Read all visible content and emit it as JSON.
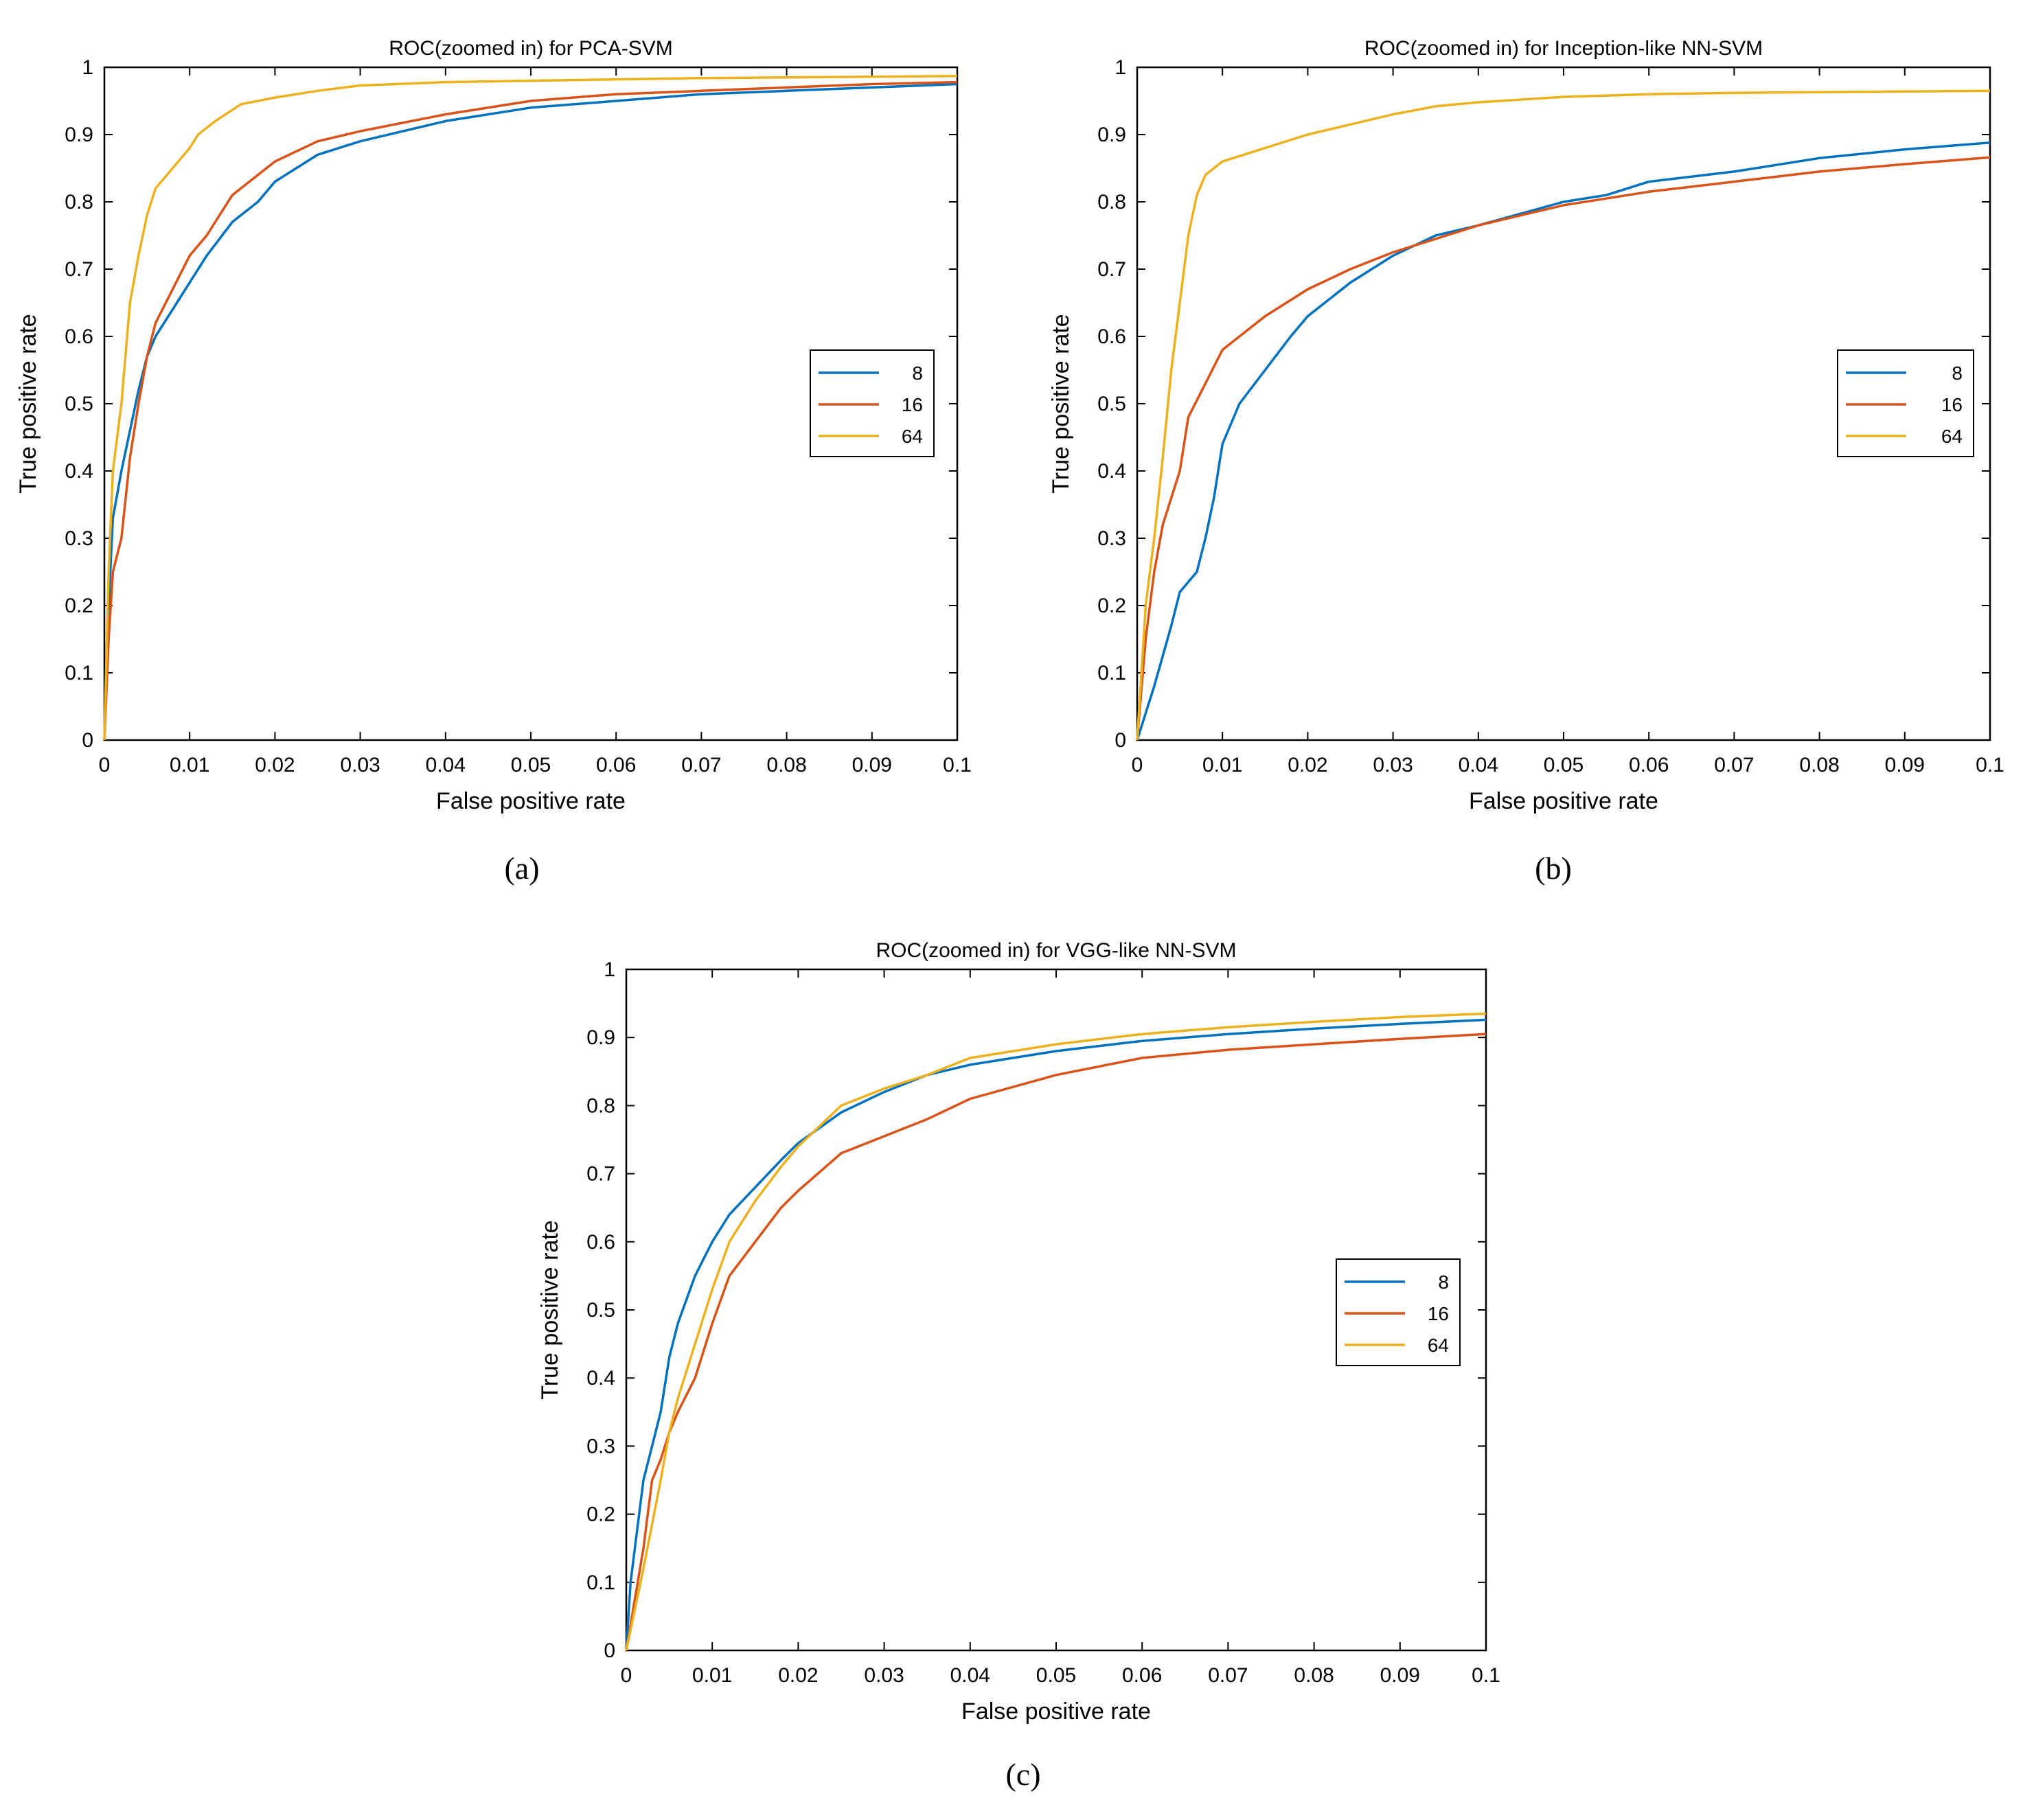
{
  "chart_data": [
    {
      "type": "line",
      "caption": "(a)",
      "title": "ROC(zoomed in) for PCA-SVM",
      "xlabel": "False positive rate",
      "ylabel": "True positive rate",
      "xlim": [
        0,
        0.1
      ],
      "ylim": [
        0,
        1
      ],
      "xticks": [
        "0",
        "0.01",
        "0.02",
        "0.03",
        "0.04",
        "0.05",
        "0.06",
        "0.07",
        "0.08",
        "0.09",
        "0.1"
      ],
      "yticks": [
        "0",
        "0.1",
        "0.2",
        "0.3",
        "0.4",
        "0.5",
        "0.6",
        "0.7",
        "0.8",
        "0.9",
        "1"
      ],
      "legend_position": "right-middle",
      "series": [
        {
          "name": "8",
          "color": "#0072BD",
          "points": [
            [
              0,
              0
            ],
            [
              0.0005,
              0.2
            ],
            [
              0.001,
              0.33
            ],
            [
              0.002,
              0.4
            ],
            [
              0.003,
              0.46
            ],
            [
              0.004,
              0.52
            ],
            [
              0.005,
              0.57
            ],
            [
              0.006,
              0.6
            ],
            [
              0.008,
              0.64
            ],
            [
              0.01,
              0.68
            ],
            [
              0.012,
              0.72
            ],
            [
              0.015,
              0.77
            ],
            [
              0.018,
              0.8
            ],
            [
              0.02,
              0.83
            ],
            [
              0.025,
              0.87
            ],
            [
              0.03,
              0.89
            ],
            [
              0.04,
              0.92
            ],
            [
              0.05,
              0.94
            ],
            [
              0.06,
              0.95
            ],
            [
              0.07,
              0.96
            ],
            [
              0.08,
              0.965
            ],
            [
              0.09,
              0.97
            ],
            [
              0.1,
              0.975
            ]
          ]
        },
        {
          "name": "16",
          "color": "#D95319",
          "points": [
            [
              0,
              0
            ],
            [
              0.0005,
              0.15
            ],
            [
              0.001,
              0.25
            ],
            [
              0.002,
              0.3
            ],
            [
              0.003,
              0.42
            ],
            [
              0.004,
              0.5
            ],
            [
              0.005,
              0.57
            ],
            [
              0.006,
              0.62
            ],
            [
              0.008,
              0.67
            ],
            [
              0.01,
              0.72
            ],
            [
              0.012,
              0.75
            ],
            [
              0.015,
              0.81
            ],
            [
              0.018,
              0.84
            ],
            [
              0.02,
              0.86
            ],
            [
              0.025,
              0.89
            ],
            [
              0.03,
              0.905
            ],
            [
              0.04,
              0.93
            ],
            [
              0.05,
              0.95
            ],
            [
              0.06,
              0.96
            ],
            [
              0.07,
              0.965
            ],
            [
              0.08,
              0.97
            ],
            [
              0.09,
              0.975
            ],
            [
              0.1,
              0.978
            ]
          ]
        },
        {
          "name": "64",
          "color": "#EDB120",
          "points": [
            [
              0,
              0
            ],
            [
              0.0005,
              0.25
            ],
            [
              0.001,
              0.4
            ],
            [
              0.002,
              0.5
            ],
            [
              0.003,
              0.65
            ],
            [
              0.004,
              0.72
            ],
            [
              0.005,
              0.78
            ],
            [
              0.006,
              0.82
            ],
            [
              0.008,
              0.85
            ],
            [
              0.01,
              0.88
            ],
            [
              0.011,
              0.9
            ],
            [
              0.013,
              0.92
            ],
            [
              0.016,
              0.945
            ],
            [
              0.02,
              0.955
            ],
            [
              0.025,
              0.965
            ],
            [
              0.03,
              0.973
            ],
            [
              0.04,
              0.978
            ],
            [
              0.05,
              0.98
            ],
            [
              0.06,
              0.982
            ],
            [
              0.07,
              0.984
            ],
            [
              0.08,
              0.985
            ],
            [
              0.09,
              0.986
            ],
            [
              0.1,
              0.987
            ]
          ]
        }
      ]
    },
    {
      "type": "line",
      "caption": "(b)",
      "title": "ROC(zoomed in) for Inception-like NN-SVM",
      "xlabel": "False positive rate",
      "ylabel": "True positive rate",
      "xlim": [
        0,
        0.1
      ],
      "ylim": [
        0,
        1
      ],
      "xticks": [
        "0",
        "0.01",
        "0.02",
        "0.03",
        "0.04",
        "0.05",
        "0.06",
        "0.07",
        "0.08",
        "0.09",
        "0.1"
      ],
      "yticks": [
        "0",
        "0.1",
        "0.2",
        "0.3",
        "0.4",
        "0.5",
        "0.6",
        "0.7",
        "0.8",
        "0.9",
        "1"
      ],
      "legend_position": "right-middle",
      "series": [
        {
          "name": "8",
          "color": "#0072BD",
          "points": [
            [
              0,
              0
            ],
            [
              0.002,
              0.08
            ],
            [
              0.004,
              0.17
            ],
            [
              0.005,
              0.22
            ],
            [
              0.007,
              0.25
            ],
            [
              0.008,
              0.3
            ],
            [
              0.009,
              0.36
            ],
            [
              0.01,
              0.44
            ],
            [
              0.012,
              0.5
            ],
            [
              0.015,
              0.55
            ],
            [
              0.018,
              0.6
            ],
            [
              0.02,
              0.63
            ],
            [
              0.025,
              0.68
            ],
            [
              0.03,
              0.72
            ],
            [
              0.035,
              0.75
            ],
            [
              0.04,
              0.765
            ],
            [
              0.05,
              0.8
            ],
            [
              0.055,
              0.81
            ],
            [
              0.06,
              0.83
            ],
            [
              0.07,
              0.845
            ],
            [
              0.08,
              0.865
            ],
            [
              0.09,
              0.878
            ],
            [
              0.1,
              0.888
            ]
          ]
        },
        {
          "name": "16",
          "color": "#D95319",
          "points": [
            [
              0,
              0
            ],
            [
              0.001,
              0.15
            ],
            [
              0.002,
              0.25
            ],
            [
              0.003,
              0.32
            ],
            [
              0.005,
              0.4
            ],
            [
              0.006,
              0.48
            ],
            [
              0.008,
              0.53
            ],
            [
              0.01,
              0.58
            ],
            [
              0.012,
              0.6
            ],
            [
              0.015,
              0.63
            ],
            [
              0.02,
              0.67
            ],
            [
              0.025,
              0.7
            ],
            [
              0.03,
              0.725
            ],
            [
              0.035,
              0.745
            ],
            [
              0.04,
              0.765
            ],
            [
              0.05,
              0.795
            ],
            [
              0.06,
              0.815
            ],
            [
              0.07,
              0.83
            ],
            [
              0.08,
              0.845
            ],
            [
              0.09,
              0.856
            ],
            [
              0.1,
              0.866
            ]
          ]
        },
        {
          "name": "64",
          "color": "#EDB120",
          "points": [
            [
              0,
              0
            ],
            [
              0.001,
              0.2
            ],
            [
              0.002,
              0.3
            ],
            [
              0.003,
              0.42
            ],
            [
              0.004,
              0.55
            ],
            [
              0.005,
              0.65
            ],
            [
              0.006,
              0.75
            ],
            [
              0.007,
              0.81
            ],
            [
              0.008,
              0.84
            ],
            [
              0.01,
              0.86
            ],
            [
              0.015,
              0.88
            ],
            [
              0.02,
              0.9
            ],
            [
              0.025,
              0.915
            ],
            [
              0.03,
              0.93
            ],
            [
              0.035,
              0.942
            ],
            [
              0.04,
              0.948
            ],
            [
              0.05,
              0.956
            ],
            [
              0.06,
              0.96
            ],
            [
              0.07,
              0.962
            ],
            [
              0.08,
              0.963
            ],
            [
              0.09,
              0.964
            ],
            [
              0.1,
              0.965
            ]
          ]
        }
      ]
    },
    {
      "type": "line",
      "caption": "(c)",
      "title": "ROC(zoomed in) for VGG-like NN-SVM",
      "xlabel": "False positive rate",
      "ylabel": "True positive rate",
      "xlim": [
        0,
        0.1
      ],
      "ylim": [
        0,
        1
      ],
      "xticks": [
        "0",
        "0.01",
        "0.02",
        "0.03",
        "0.04",
        "0.05",
        "0.06",
        "0.07",
        "0.08",
        "0.09",
        "0.1"
      ],
      "yticks": [
        "0",
        "0.1",
        "0.2",
        "0.3",
        "0.4",
        "0.5",
        "0.6",
        "0.7",
        "0.8",
        "0.9",
        "1"
      ],
      "legend_position": "right-middle",
      "series": [
        {
          "name": "8",
          "color": "#0072BD",
          "points": [
            [
              0,
              0
            ],
            [
              0.0005,
              0.1
            ],
            [
              0.001,
              0.15
            ],
            [
              0.002,
              0.25
            ],
            [
              0.003,
              0.3
            ],
            [
              0.004,
              0.35
            ],
            [
              0.005,
              0.43
            ],
            [
              0.006,
              0.48
            ],
            [
              0.008,
              0.55
            ],
            [
              0.01,
              0.6
            ],
            [
              0.012,
              0.64
            ],
            [
              0.015,
              0.68
            ],
            [
              0.018,
              0.72
            ],
            [
              0.02,
              0.745
            ],
            [
              0.025,
              0.79
            ],
            [
              0.03,
              0.82
            ],
            [
              0.035,
              0.845
            ],
            [
              0.04,
              0.86
            ],
            [
              0.05,
              0.88
            ],
            [
              0.06,
              0.895
            ],
            [
              0.07,
              0.905
            ],
            [
              0.08,
              0.913
            ],
            [
              0.09,
              0.92
            ],
            [
              0.1,
              0.926
            ]
          ]
        },
        {
          "name": "16",
          "color": "#D95319",
          "points": [
            [
              0,
              0
            ],
            [
              0.002,
              0.15
            ],
            [
              0.003,
              0.25
            ],
            [
              0.004,
              0.28
            ],
            [
              0.005,
              0.32
            ],
            [
              0.006,
              0.35
            ],
            [
              0.008,
              0.4
            ],
            [
              0.01,
              0.48
            ],
            [
              0.012,
              0.55
            ],
            [
              0.015,
              0.6
            ],
            [
              0.018,
              0.65
            ],
            [
              0.02,
              0.675
            ],
            [
              0.025,
              0.73
            ],
            [
              0.03,
              0.755
            ],
            [
              0.035,
              0.78
            ],
            [
              0.04,
              0.81
            ],
            [
              0.05,
              0.845
            ],
            [
              0.06,
              0.87
            ],
            [
              0.07,
              0.882
            ],
            [
              0.08,
              0.89
            ],
            [
              0.09,
              0.898
            ],
            [
              0.1,
              0.905
            ]
          ]
        },
        {
          "name": "64",
          "color": "#EDB120",
          "points": [
            [
              0,
              0
            ],
            [
              0.002,
              0.12
            ],
            [
              0.004,
              0.25
            ],
            [
              0.005,
              0.32
            ],
            [
              0.006,
              0.37
            ],
            [
              0.008,
              0.45
            ],
            [
              0.01,
              0.53
            ],
            [
              0.012,
              0.6
            ],
            [
              0.015,
              0.66
            ],
            [
              0.018,
              0.71
            ],
            [
              0.02,
              0.74
            ],
            [
              0.025,
              0.8
            ],
            [
              0.03,
              0.825
            ],
            [
              0.035,
              0.845
            ],
            [
              0.04,
              0.87
            ],
            [
              0.05,
              0.89
            ],
            [
              0.06,
              0.905
            ],
            [
              0.07,
              0.915
            ],
            [
              0.08,
              0.923
            ],
            [
              0.09,
              0.93
            ],
            [
              0.1,
              0.935
            ]
          ]
        }
      ]
    }
  ]
}
